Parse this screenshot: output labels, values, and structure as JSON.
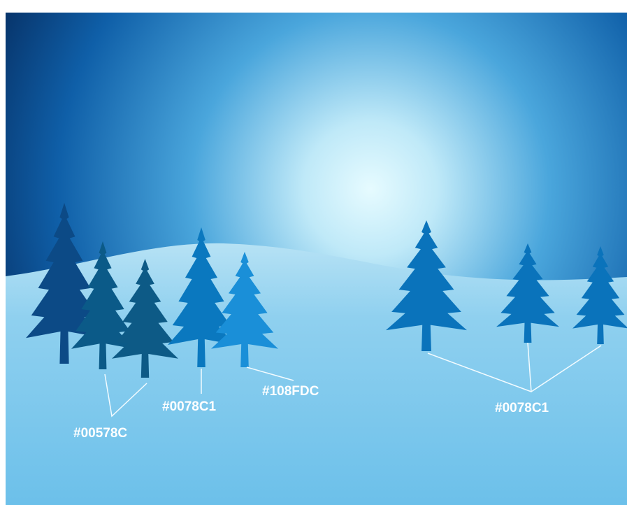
{
  "labels": [
    "#00578C",
    "#0078C1",
    "#108FDC",
    "#0078C1"
  ]
}
